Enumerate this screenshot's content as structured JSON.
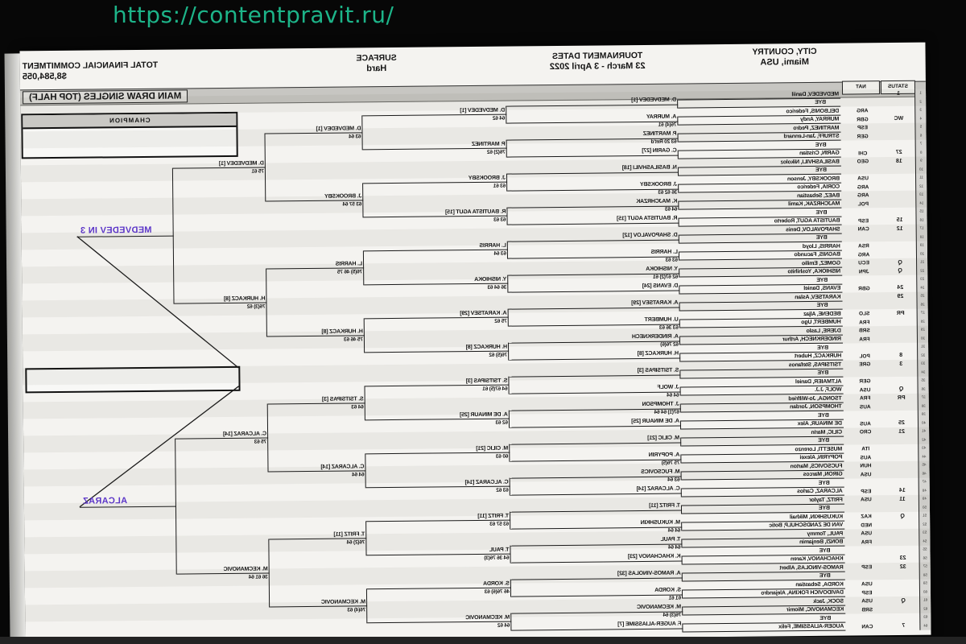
{
  "page": {
    "url": "https://contentpravit.ru/",
    "url_color": "#1db489"
  },
  "header": {
    "city_country_label": "CITY, COUNTRY",
    "city_country": "Miami, USA",
    "dates_label": "TOURNAMENT DATES",
    "dates": "23 March - 3 April 2022",
    "surface_label": "SURFACE",
    "surface": "Hard",
    "commitment_label": "TOTAL FINANCIAL COMMITMENT",
    "commitment": "$8,584,055",
    "title": "MAIN DRAW SINGLES (TOP HALF)",
    "status_col": "STATUS",
    "nat_col": "NAT"
  },
  "final": {
    "champion_label": "CHAMPION"
  },
  "annotations": {
    "semifinal_top": "MEDVEDEV IN 3",
    "semifinal_bottom": "ALCARAZ",
    "color": "#5b35c8"
  },
  "players": [
    {
      "n": 1,
      "status": "1",
      "name": "MEDVEDEV, Daniil"
    },
    {
      "n": 2,
      "name": "BYE",
      "bye": true
    },
    {
      "n": 3,
      "nat": "ARG",
      "name": "DELBONIS, Federico"
    },
    {
      "n": 4,
      "status": "WC",
      "nat": "GBR",
      "name": "MURRAY, Andy"
    },
    {
      "n": 5,
      "nat": "ESP",
      "name": "MARTINEZ, Pedro"
    },
    {
      "n": 6,
      "nat": "GER",
      "name": "STRUFF, Jan-Lennard"
    },
    {
      "n": 7,
      "name": "BYE",
      "bye": true
    },
    {
      "n": 8,
      "status": "27",
      "nat": "CHI",
      "name": "GARIN, Cristian"
    },
    {
      "n": 9,
      "status": "18",
      "nat": "GEO",
      "name": "BASILASHVILI, Nikoloz"
    },
    {
      "n": 10,
      "name": "BYE",
      "bye": true
    },
    {
      "n": 11,
      "nat": "USA",
      "name": "BROOKSBY, Jenson"
    },
    {
      "n": 12,
      "nat": "ARG",
      "name": "CORIA, Federico"
    },
    {
      "n": 13,
      "nat": "ARG",
      "name": "BAEZ, Sebastian"
    },
    {
      "n": 14,
      "nat": "POL",
      "name": "MAJCHRZAK, Kamil"
    },
    {
      "n": 15,
      "name": "BYE",
      "bye": true
    },
    {
      "n": 16,
      "status": "15",
      "nat": "ESP",
      "name": "BAUTISTA AGUT, Roberto"
    },
    {
      "n": 17,
      "status": "12",
      "nat": "CAN",
      "name": "SHAPOVALOV, Denis"
    },
    {
      "n": 18,
      "name": "BYE",
      "bye": true
    },
    {
      "n": 19,
      "nat": "RSA",
      "name": "HARRIS, Lloyd"
    },
    {
      "n": 20,
      "nat": "ARG",
      "name": "BAGNIS, Facundo"
    },
    {
      "n": 21,
      "status": "Q",
      "nat": "ECU",
      "name": "GOMEZ, Emilio"
    },
    {
      "n": 22,
      "status": "Q",
      "nat": "JPN",
      "name": "NISHIOKA, Yoshihito"
    },
    {
      "n": 23,
      "name": "BYE",
      "bye": true
    },
    {
      "n": 24,
      "status": "24",
      "nat": "GBR",
      "name": "EVANS, Daniel"
    },
    {
      "n": 25,
      "status": "29",
      "name": "KARATSEV, Aslan"
    },
    {
      "n": 26,
      "name": "BYE",
      "bye": true
    },
    {
      "n": 27,
      "status": "PR",
      "nat": "SLO",
      "name": "BEDENE, Aljaz"
    },
    {
      "n": 28,
      "nat": "FRA",
      "name": "HUMBERT, Ugo"
    },
    {
      "n": 29,
      "nat": "SRB",
      "name": "DJERE, Laslo"
    },
    {
      "n": 30,
      "nat": "FRA",
      "name": "RINDERKNECH, Arthur"
    },
    {
      "n": 31,
      "name": "BYE",
      "bye": true
    },
    {
      "n": 32,
      "status": "8",
      "nat": "POL",
      "name": "HURKACZ, Hubert"
    },
    {
      "n": 33,
      "status": "3",
      "nat": "GRE",
      "name": "TSITSIPAS, Stefanos"
    },
    {
      "n": 34,
      "name": "BYE",
      "bye": true
    },
    {
      "n": 35,
      "nat": "GER",
      "name": "ALTMAIER, Daniel"
    },
    {
      "n": 36,
      "status": "Q",
      "nat": "USA",
      "name": "WOLF, J.J."
    },
    {
      "n": 37,
      "status": "PR",
      "nat": "FRA",
      "name": "TSONGA, Jo-Wilfried"
    },
    {
      "n": 38,
      "nat": "AUS",
      "name": "THOMPSON, Jordan"
    },
    {
      "n": 39,
      "name": "BYE",
      "bye": true
    },
    {
      "n": 40,
      "status": "25",
      "nat": "AUS",
      "name": "DE MINAUR, Alex"
    },
    {
      "n": 41,
      "status": "21",
      "nat": "CRO",
      "name": "CILIC, Marin"
    },
    {
      "n": 42,
      "name": "BYE",
      "bye": true
    },
    {
      "n": 43,
      "nat": "ITA",
      "name": "MUSETTI, Lorenzo"
    },
    {
      "n": 44,
      "nat": "AUS",
      "name": "POPYRIN, Alexei"
    },
    {
      "n": 45,
      "nat": "HUN",
      "name": "FUCSOVICS, Marton"
    },
    {
      "n": 46,
      "nat": "USA",
      "name": "GIRON, Marcos"
    },
    {
      "n": 47,
      "name": "BYE",
      "bye": true
    },
    {
      "n": 48,
      "status": "14",
      "nat": "ESP",
      "name": "ALCARAZ, Carlos"
    },
    {
      "n": 49,
      "status": "11",
      "nat": "USA",
      "name": "FRITZ, Taylor"
    },
    {
      "n": 50,
      "name": "BYE",
      "bye": true
    },
    {
      "n": 51,
      "status": "Q",
      "nat": "KAZ",
      "name": "KUKUSHKIN, Mikhail"
    },
    {
      "n": 52,
      "nat": "NED",
      "name": "VAN DE ZANDSCHULP, Botic"
    },
    {
      "n": 53,
      "nat": "USA",
      "name": "PAUL, Tommy"
    },
    {
      "n": 54,
      "nat": "FRA",
      "name": "BONZI, Benjamin"
    },
    {
      "n": 55,
      "name": "BYE",
      "bye": true
    },
    {
      "n": 56,
      "status": "23",
      "name": "KHACHANOV, Karen"
    },
    {
      "n": 57,
      "status": "32",
      "nat": "ESP",
      "name": "RAMOS-VINOLAS, Albert"
    },
    {
      "n": 58,
      "name": "BYE",
      "bye": true
    },
    {
      "n": 59,
      "nat": "USA",
      "name": "KORDA, Sebastian"
    },
    {
      "n": 60,
      "nat": "ESP",
      "name": "DAVIDOVICH FOKINA, Alejandro"
    },
    {
      "n": 61,
      "status": "Q",
      "nat": "USA",
      "name": "SOCK, Jack"
    },
    {
      "n": 62,
      "nat": "SRB",
      "name": "KECMANOVIC, Miomir"
    },
    {
      "n": 63,
      "name": "BYE",
      "bye": true
    },
    {
      "n": 64,
      "status": "7",
      "nat": "CAN",
      "name": "AUGER-ALIASSIME, Felix"
    }
  ],
  "bracket": {
    "round_2": [
      {
        "name": "D. MEDVEDEV [1]"
      },
      {
        "name": "A. MURRAY",
        "score": "76(4) 61"
      },
      {
        "name": "P. MARTINEZ",
        "score": "63 20 Ret'd"
      },
      {
        "name": "C. GARIN [27]"
      },
      {
        "name": "N. BASILASHVILI [18]"
      },
      {
        "name": "J. BROOKSBY",
        "score": "36 62 63"
      },
      {
        "name": "K. MAJCHRZAK",
        "score": "64 63"
      },
      {
        "name": "R. BAUTISTA AGUT [15]"
      },
      {
        "name": "D. SHAPOVALOV [12]"
      },
      {
        "name": "L. HARRIS",
        "score": "63 63"
      },
      {
        "name": "Y. NISHIOKA",
        "score": "62 67(2) 61"
      },
      {
        "name": "D. EVANS [24]"
      },
      {
        "name": "A. KARATSEV [29]"
      },
      {
        "name": "U. HUMBERT",
        "score": "63 36 63"
      },
      {
        "name": "A. RINDERKNECH",
        "score": "62 76(6)"
      },
      {
        "name": "H. HURKACZ [8]"
      },
      {
        "name": "S. TSITSIPAS [3]"
      },
      {
        "name": "J. WOLF",
        "score": "64 64"
      },
      {
        "name": "J. THOMPSON",
        "score": "67(1) 64 64"
      },
      {
        "name": "A. DE MINAUR [25]"
      },
      {
        "name": "M. CILIC [21]"
      },
      {
        "name": "A. POPYRIN",
        "score": "75 76(5)"
      },
      {
        "name": "M. FUCSOVICS",
        "score": "63 64"
      },
      {
        "name": "C. ALCARAZ [14]"
      },
      {
        "name": "T. FRITZ [11]"
      },
      {
        "name": "M. KUKUSHKIN",
        "score": "64 64"
      },
      {
        "name": "T. PAUL",
        "score": "64 64"
      },
      {
        "name": "K. KHACHANOV [23]"
      },
      {
        "name": "A. RAMOS-VINOLAS [32]"
      },
      {
        "name": "S. KORDA",
        "score": "61 61"
      },
      {
        "name": "M. KECMANOVIC",
        "score": "76(3) 64"
      },
      {
        "name": "F. AUGER-ALIASSIME [7]"
      }
    ],
    "round_3": [
      {
        "name": "D. MEDVEDEV [1]",
        "score": "64 62"
      },
      {
        "name": "P. MARTINEZ",
        "score": "76(2) 62"
      },
      {
        "name": "J. BROOKSBY",
        "score": "63 61"
      },
      {
        "name": "R. BAUTISTA AGUT [15]",
        "score": "63 63"
      },
      {
        "name": "L. HARRIS",
        "score": "63 64"
      },
      {
        "name": "Y. NISHIOKA",
        "score": "36 64 63"
      },
      {
        "name": "A. KARATSEV [29]",
        "score": "75 62"
      },
      {
        "name": "H. HURKACZ [8]",
        "score": "76(5) 62"
      },
      {
        "name": "S. TSITSIPAS [3]",
        "score": "64 67(5) 61"
      },
      {
        "name": "A. DE MINAUR [25]",
        "score": "62 63"
      },
      {
        "name": "M. CILIC [21]",
        "score": "60 63"
      },
      {
        "name": "C. ALCARAZ [14]",
        "score": "63 62"
      },
      {
        "name": "T. FRITZ [11]",
        "score": "63 57 63"
      },
      {
        "name": "T. PAUL",
        "score": "64 36 76(3)"
      },
      {
        "name": "S. KORDA",
        "score": "46 76(6) 63"
      },
      {
        "name": "M. KECMANOVIC",
        "score": "64 62"
      }
    ],
    "round_of_16": [
      {
        "name": "D. MEDVEDEV [1]",
        "score": "63 64"
      },
      {
        "name": "J. BROOKSBY",
        "score": "63 57 64"
      },
      {
        "name": "L. HARRIS",
        "score": "76(5) 46 75"
      },
      {
        "name": "H. HURKACZ [8]",
        "score": "75 46 63"
      },
      {
        "name": "S. TSITSIPAS [3]",
        "score": "64 63"
      },
      {
        "name": "C. ALCARAZ [14]",
        "score": "64 64"
      },
      {
        "name": "T. FRITZ [11]",
        "score": "76(2) 64"
      },
      {
        "name": "M. KECMANOVIC",
        "score": "76(4) 63"
      }
    ],
    "quarterfinals": [
      {
        "name": "D. MEDVEDEV [1]",
        "score": "75 61"
      },
      {
        "name": "H. HURKACZ [8]",
        "score": "76(3) 62"
      },
      {
        "name": "C. ALCARAZ [14]",
        "score": "75 63"
      },
      {
        "name": "M. KECMANOVIC",
        "score": "36 61 64"
      }
    ]
  }
}
